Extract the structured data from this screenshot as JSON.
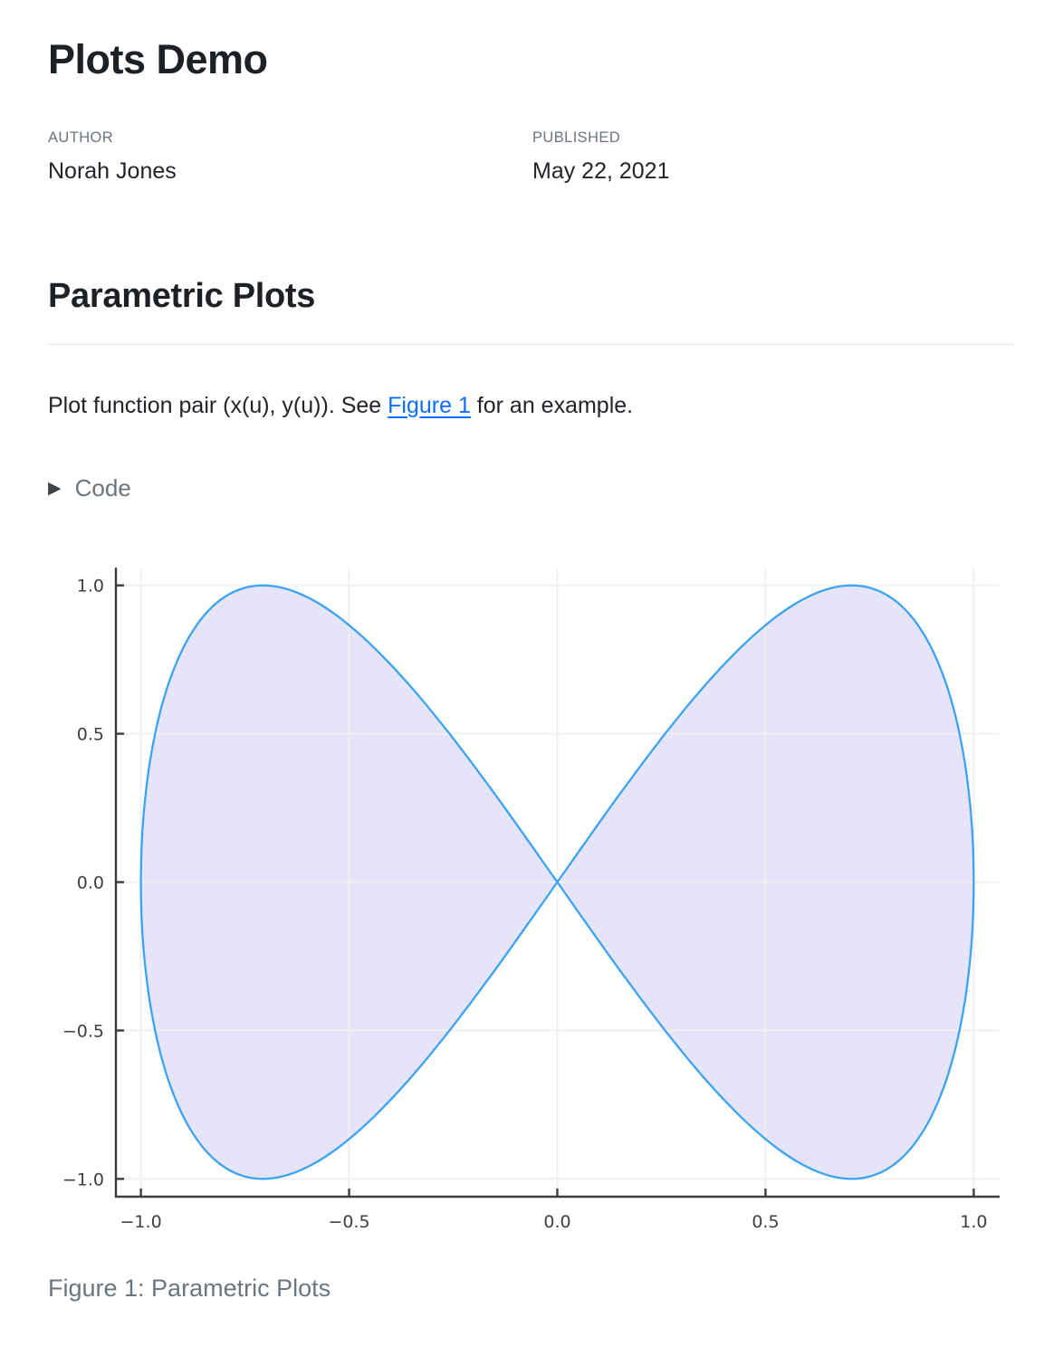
{
  "page": {
    "title": "Plots Demo",
    "meta": {
      "author_label": "AUTHOR",
      "author_name": "Norah Jones",
      "published_label": "PUBLISHED",
      "published_date": "May 22, 2021"
    },
    "section": {
      "heading": "Parametric Plots",
      "paragraph_prefix": "Plot function pair (x(u), y(u)). See ",
      "link_text": "Figure 1",
      "paragraph_suffix": " for an example."
    },
    "code_fold": {
      "marker_icon": "triangle-right-icon",
      "marker_glyph": "▶",
      "label": "Code"
    },
    "figure_caption": "Figure 1: Parametric Plots",
    "colors": {
      "text": "#212529",
      "muted": "#6c757d",
      "link": "#0d6efd",
      "rule": "#dee2e6"
    }
  },
  "chart_data": {
    "type": "line",
    "title": "",
    "xlabel": "",
    "ylabel": "",
    "description": "Parametric figure-eight curve x(u)=sin(u), y(u)=sin(2u) for u in [0, 2pi], area filled to y=0 with lavender; both lobes filled, no legend",
    "parametric": {
      "x_expr": "sin(u)",
      "y_expr": "sin(2u)",
      "x_freq": 1,
      "y_freq": 2,
      "u_min": 0,
      "u_max": 6.283185307,
      "samples": 360
    },
    "key_points": [
      [
        0,
        0
      ],
      [
        0.707,
        1
      ],
      [
        1,
        0
      ],
      [
        0.707,
        -1
      ],
      [
        0,
        0
      ],
      [
        -0.707,
        1
      ],
      [
        -1,
        0
      ],
      [
        -0.707,
        -1
      ],
      [
        0,
        0
      ]
    ],
    "xlim": [
      -1.06,
      1.06
    ],
    "ylim": [
      -1.06,
      1.06
    ],
    "x_ticks": {
      "values": [
        -1.0,
        -0.5,
        0.0,
        0.5,
        1.0
      ],
      "labels": [
        "−1.0",
        "−0.5",
        "0.0",
        "0.5",
        "1.0"
      ]
    },
    "y_ticks": {
      "values": [
        -1.0,
        -0.5,
        0.0,
        0.5,
        1.0
      ],
      "labels": [
        "−1.0",
        "−0.5",
        "0.0",
        "0.5",
        "1.0"
      ]
    },
    "grid": true,
    "legend": false,
    "line_color": "#3BA3F2",
    "fill_color": "#E5E4F8",
    "axis_color": "#3C3C3C",
    "grid_color": "#F0F0F4",
    "tick_label_color": "#3F3F3F"
  }
}
